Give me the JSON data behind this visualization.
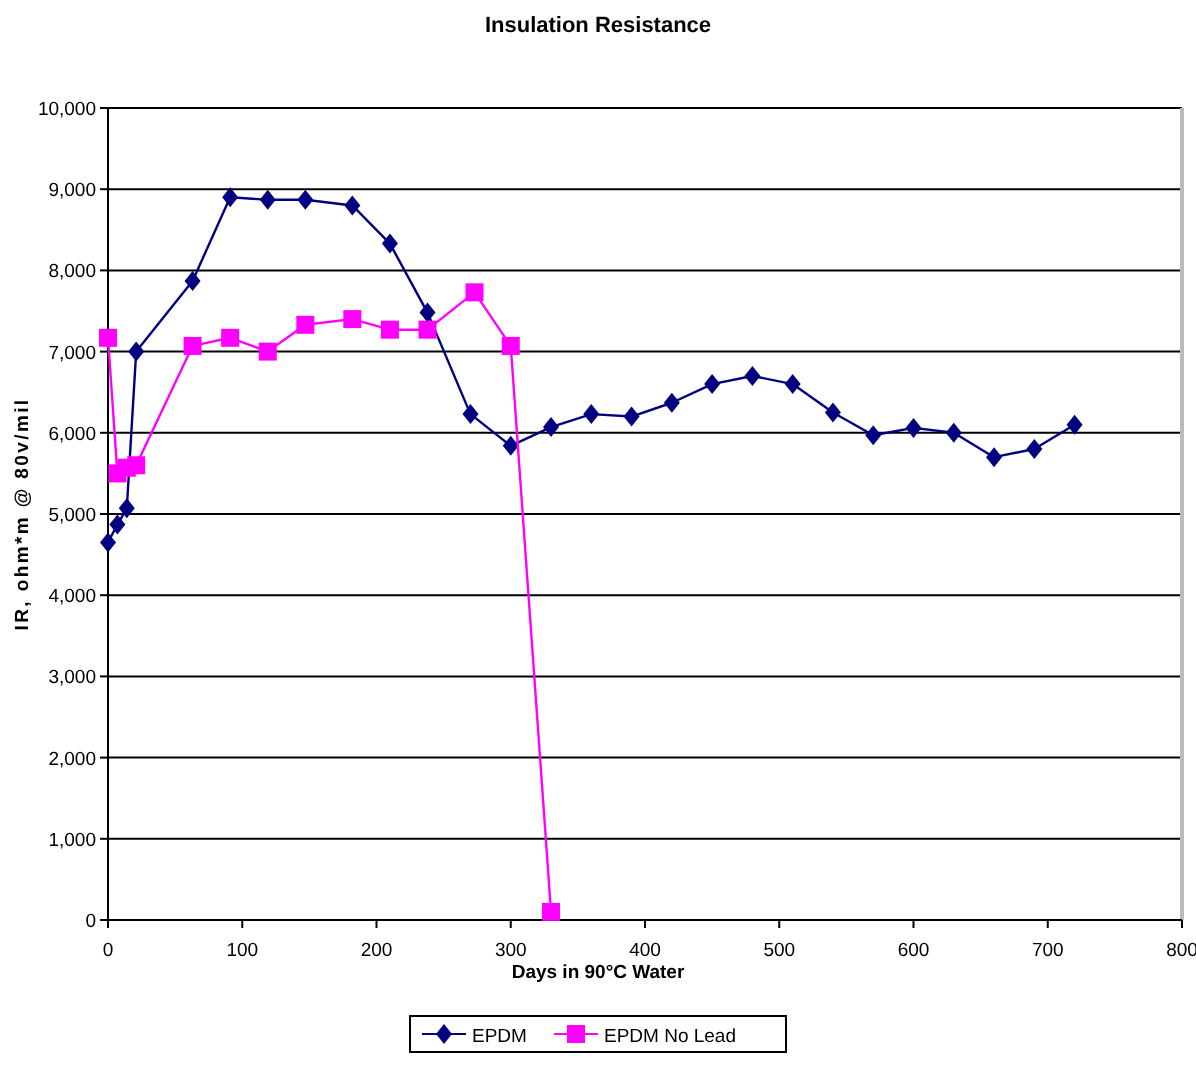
{
  "chart_data": {
    "type": "line",
    "title": "Insulation Resistance",
    "xlabel": "Days in 90°C Water",
    "ylabel": "IR, ohm*m @ 80v/mil",
    "xlim": [
      0,
      800
    ],
    "xticks": [
      0,
      100,
      200,
      300,
      400,
      500,
      600,
      700,
      800
    ],
    "ylim": [
      0,
      10000
    ],
    "yticks": [
      {
        "value": 0,
        "label": "0"
      },
      {
        "value": 1000,
        "label": "1,000"
      },
      {
        "value": 2000,
        "label": "2,000"
      },
      {
        "value": 3000,
        "label": "3,000"
      },
      {
        "value": 4000,
        "label": "4,000"
      },
      {
        "value": 5000,
        "label": "5,000"
      },
      {
        "value": 6000,
        "label": "6,000"
      },
      {
        "value": 7000,
        "label": "7,000"
      },
      {
        "value": 8000,
        "label": "8,000"
      },
      {
        "value": 9000,
        "label": "9,000"
      },
      {
        "value": 10000,
        "label": "10,000"
      }
    ],
    "grid": "y",
    "legend": "bottom",
    "series": [
      {
        "name": "EPDM",
        "color": "#000080",
        "marker": "diamond",
        "x": [
          0,
          7,
          14,
          21,
          63,
          91,
          119,
          147,
          182,
          210,
          238,
          270,
          300,
          330,
          360,
          390,
          420,
          450,
          480,
          510,
          540,
          570,
          600,
          630,
          660,
          690,
          720
        ],
        "values": [
          4650,
          4870,
          5070,
          7000,
          7870,
          8900,
          8870,
          8870,
          8800,
          8330,
          7480,
          6230,
          5840,
          6070,
          6230,
          6200,
          6370,
          6600,
          6700,
          6600,
          6250,
          5970,
          6060,
          6000,
          5700,
          5800,
          6100
        ]
      },
      {
        "name": "EPDM No Lead",
        "color": "#ff00ff",
        "marker": "square",
        "x": [
          0,
          7,
          14,
          21,
          63,
          91,
          119,
          147,
          182,
          210,
          238,
          273,
          300,
          330
        ],
        "values": [
          7170,
          5500,
          5570,
          5600,
          7070,
          7170,
          7000,
          7330,
          7400,
          7270,
          7270,
          7730,
          7070,
          100
        ]
      }
    ]
  }
}
